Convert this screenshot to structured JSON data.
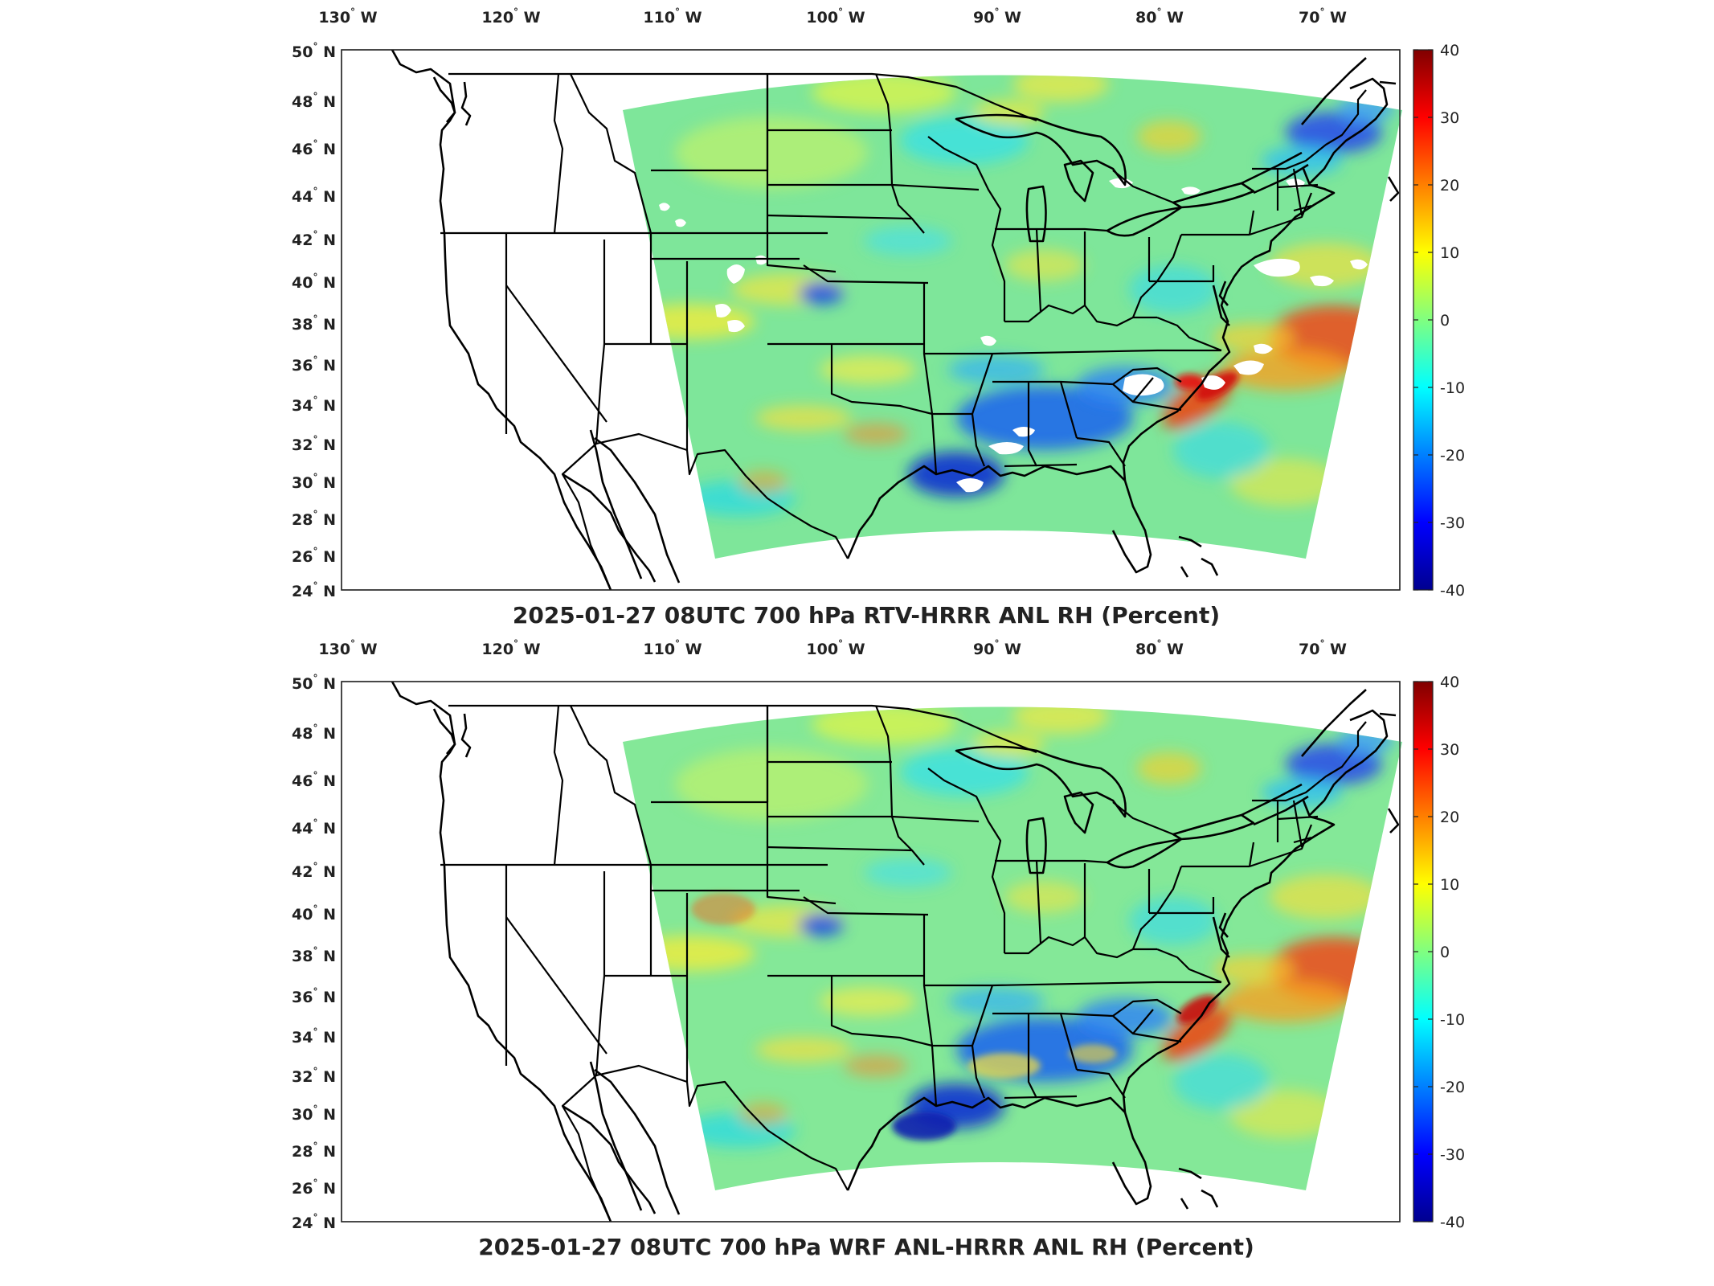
{
  "panels": [
    {
      "title": "2025-01-27 08UTC 700 hPa RTV-HRRR ANL RH (Percent)",
      "lon_labels": [
        "130",
        "120",
        "110",
        "100",
        "90",
        "80",
        "70"
      ],
      "lon_suffix": "W",
      "lat_labels": [
        "50",
        "48",
        "46",
        "44",
        "42",
        "40",
        "38",
        "36",
        "34",
        "32",
        "30",
        "28",
        "26",
        "24"
      ],
      "lat_suffix": "N",
      "colorbar_ticks": [
        "40",
        "30",
        "20",
        "10",
        "0",
        "-10",
        "-20",
        "-30",
        "-40"
      ]
    },
    {
      "title": "2025-01-27 08UTC 700 hPa WRF ANL-HRRR ANL RH (Percent)",
      "lon_labels": [
        "130",
        "120",
        "110",
        "100",
        "90",
        "80",
        "70"
      ],
      "lon_suffix": "W",
      "lat_labels": [
        "50",
        "48",
        "46",
        "44",
        "42",
        "40",
        "38",
        "36",
        "34",
        "32",
        "30",
        "28",
        "26",
        "24"
      ],
      "lat_suffix": "N",
      "colorbar_ticks": [
        "40",
        "30",
        "20",
        "10",
        "0",
        "-10",
        "-20",
        "-30",
        "-40"
      ]
    }
  ],
  "colormap": [
    "#00008f",
    "#0000ff",
    "#0080ff",
    "#00ffff",
    "#80ff80",
    "#ffff00",
    "#ff8000",
    "#ff0000",
    "#800000"
  ],
  "field_base_color": "#7ee69a"
}
